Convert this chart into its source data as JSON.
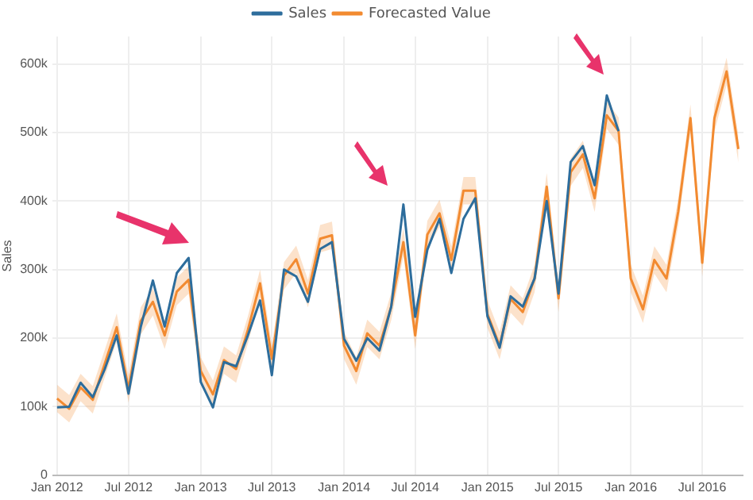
{
  "chart_data": {
    "type": "line",
    "ylabel": "Sales",
    "legend": "top",
    "grid": true,
    "marker": "none",
    "line_style": "solid",
    "x": [
      "2012-01",
      "2012-02",
      "2012-03",
      "2012-04",
      "2012-05",
      "2012-06",
      "2012-07",
      "2012-08",
      "2012-09",
      "2012-10",
      "2012-11",
      "2012-12",
      "2013-01",
      "2013-02",
      "2013-03",
      "2013-04",
      "2013-05",
      "2013-06",
      "2013-07",
      "2013-08",
      "2013-09",
      "2013-10",
      "2013-11",
      "2013-12",
      "2014-01",
      "2014-02",
      "2014-03",
      "2014-04",
      "2014-05",
      "2014-06",
      "2014-07",
      "2014-08",
      "2014-09",
      "2014-10",
      "2014-11",
      "2014-12",
      "2015-01",
      "2015-02",
      "2015-03",
      "2015-04",
      "2015-05",
      "2015-06",
      "2015-07",
      "2015-08",
      "2015-09",
      "2015-10",
      "2015-11",
      "2015-12",
      "2016-01",
      "2016-02",
      "2016-03",
      "2016-04",
      "2016-05",
      "2016-06",
      "2016-07",
      "2016-08",
      "2016-09",
      "2016-10"
    ],
    "series": [
      {
        "name": "Sales",
        "color": "#2d6d9c",
        "values": [
          99000,
          100000,
          135000,
          114000,
          154000,
          204000,
          119000,
          216000,
          284000,
          217000,
          295000,
          317000,
          136000,
          99000,
          165000,
          159000,
          204000,
          255000,
          146000,
          300000,
          290000,
          253000,
          330000,
          340000,
          199000,
          167000,
          200000,
          182000,
          246000,
          395000,
          231000,
          329000,
          374000,
          295000,
          374000,
          404000,
          232000,
          186000,
          261000,
          246000,
          287000,
          400000,
          265000,
          457000,
          480000,
          423000,
          554000,
          502000,
          null,
          null,
          null,
          null,
          null,
          null,
          null,
          null,
          null,
          null
        ]
      },
      {
        "name": "Forecasted Value",
        "color": "#f28a30",
        "values": [
          112000,
          97000,
          128000,
          110000,
          162000,
          216000,
          126000,
          225000,
          253000,
          204000,
          268000,
          285000,
          152000,
          118000,
          168000,
          155000,
          212000,
          280000,
          170000,
          291000,
          315000,
          265000,
          345000,
          350000,
          189000,
          152000,
          207000,
          189000,
          246000,
          340000,
          204000,
          351000,
          382000,
          314000,
          415000,
          415000,
          235000,
          189000,
          257000,
          238000,
          287000,
          421000,
          258000,
          442000,
          468000,
          404000,
          525000,
          502000,
          287000,
          242000,
          314000,
          287000,
          385000,
          521000,
          310000,
          521000,
          589000,
          476000
        ],
        "lower": [
          92000,
          77000,
          108000,
          90000,
          142000,
          196000,
          106000,
          205000,
          233000,
          184000,
          248000,
          265000,
          132000,
          98000,
          148000,
          135000,
          192000,
          260000,
          150000,
          271000,
          295000,
          245000,
          325000,
          330000,
          169000,
          132000,
          187000,
          169000,
          226000,
          320000,
          184000,
          331000,
          362000,
          294000,
          395000,
          395000,
          215000,
          169000,
          237000,
          218000,
          267000,
          401000,
          238000,
          422000,
          448000,
          384000,
          505000,
          482000,
          267000,
          222000,
          294000,
          267000,
          365000,
          501000,
          290000,
          501000,
          569000,
          456000
        ],
        "upper": [
          132000,
          117000,
          148000,
          130000,
          182000,
          236000,
          146000,
          245000,
          273000,
          224000,
          288000,
          305000,
          172000,
          138000,
          188000,
          175000,
          232000,
          300000,
          190000,
          311000,
          335000,
          285000,
          365000,
          370000,
          209000,
          172000,
          227000,
          209000,
          266000,
          360000,
          224000,
          371000,
          402000,
          334000,
          435000,
          435000,
          255000,
          209000,
          277000,
          258000,
          307000,
          441000,
          278000,
          462000,
          488000,
          424000,
          545000,
          522000,
          307000,
          262000,
          334000,
          307000,
          405000,
          541000,
          330000,
          541000,
          609000,
          496000
        ]
      }
    ],
    "xlim": [
      "2011-12-20",
      "2016-10-14"
    ],
    "xticks": [
      {
        "value": "2012-01",
        "label": "Jan 2012"
      },
      {
        "value": "2012-07",
        "label": "Jul 2012"
      },
      {
        "value": "2013-01",
        "label": "Jan 2013"
      },
      {
        "value": "2013-07",
        "label": "Jul 2013"
      },
      {
        "value": "2014-01",
        "label": "Jan 2014"
      },
      {
        "value": "2014-07",
        "label": "Jul 2014"
      },
      {
        "value": "2015-01",
        "label": "Jan 2015"
      },
      {
        "value": "2015-07",
        "label": "Jul 2015"
      },
      {
        "value": "2016-01",
        "label": "Jan 2016"
      },
      {
        "value": "2016-07",
        "label": "Jul 2016"
      }
    ],
    "ylim": [
      0,
      640000
    ],
    "yticks": [
      0,
      {
        "value": 100000,
        "label": "100k"
      },
      {
        "value": 200000,
        "label": "200k"
      },
      {
        "value": 300000,
        "label": "300k"
      },
      {
        "value": 400000,
        "label": "400k"
      },
      {
        "value": 500000,
        "label": "500k"
      },
      {
        "value": 600000,
        "label": "600k"
      }
    ]
  }
}
